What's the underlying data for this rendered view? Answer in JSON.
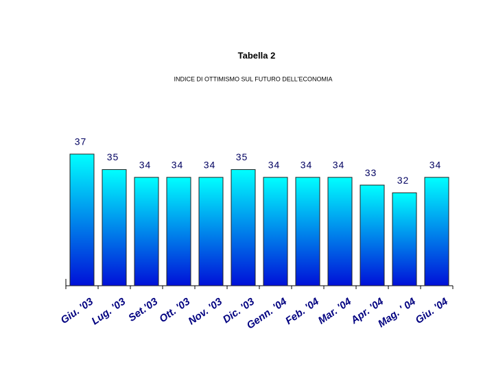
{
  "chart_data": {
    "type": "bar",
    "title": "Tabella 2",
    "subtitle": "INDICE DI OTTIMISMO SUL FUTURO DELL'ECONOMIA",
    "categories": [
      "Giu. '03",
      "Lug. '03",
      "Set.'03",
      "Ott. '03",
      "Nov. '03",
      "Dic. '03",
      "Genn. '04",
      "Feb. '04",
      "Mar. '04",
      "Apr. '04",
      "Mag. ' 04",
      "Giu. '04"
    ],
    "values": [
      37,
      35,
      34,
      34,
      34,
      35,
      34,
      34,
      34,
      33,
      32,
      34
    ],
    "color": "#00ffff",
    "gradient_color": "#0010d8",
    "ylim": [
      20,
      40
    ]
  }
}
